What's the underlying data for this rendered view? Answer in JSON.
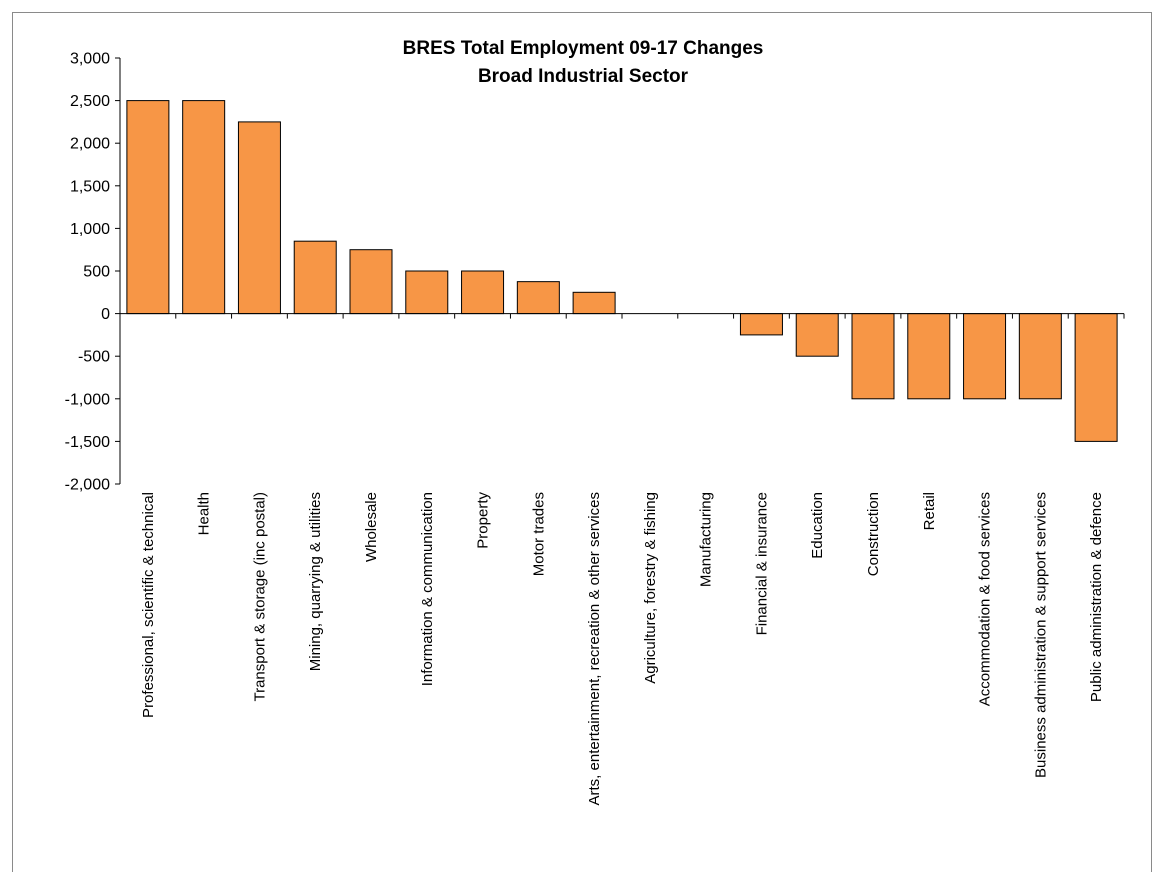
{
  "chart_data": {
    "type": "bar",
    "title": "BRES Total Employment 09-17 Changes",
    "subtitle": "Broad Industrial Sector",
    "xlabel": "",
    "ylabel": "",
    "ylim": [
      -2000,
      3000
    ],
    "ytick_step": 500,
    "ytick_labels": [
      "-2,000",
      "-1,500",
      "-1,000",
      "-500",
      "0",
      "500",
      "1,000",
      "1,500",
      "2,000",
      "2,500",
      "3,000"
    ],
    "grid": false,
    "legend": "none",
    "bar_color": "#F79646",
    "bar_edge_color": "#000000",
    "categories": [
      "Professional, scientific & technical",
      "Health",
      "Transport & storage (inc postal)",
      "Mining, quarrying & utilities",
      "Wholesale",
      "Information & communication",
      "Property",
      "Motor trades",
      "Arts, entertainment, recreation & other services",
      "Agriculture, forestry & fishing",
      "Manufacturing",
      "Financial & insurance",
      "Education",
      "Construction",
      "Retail",
      "Accommodation & food services",
      "Business administration & support services",
      "Public administration & defence"
    ],
    "values": [
      2500,
      2500,
      2250,
      850,
      750,
      500,
      500,
      375,
      250,
      0,
      0,
      -250,
      -500,
      -1000,
      -1000,
      -1000,
      -1000,
      -1500
    ]
  }
}
